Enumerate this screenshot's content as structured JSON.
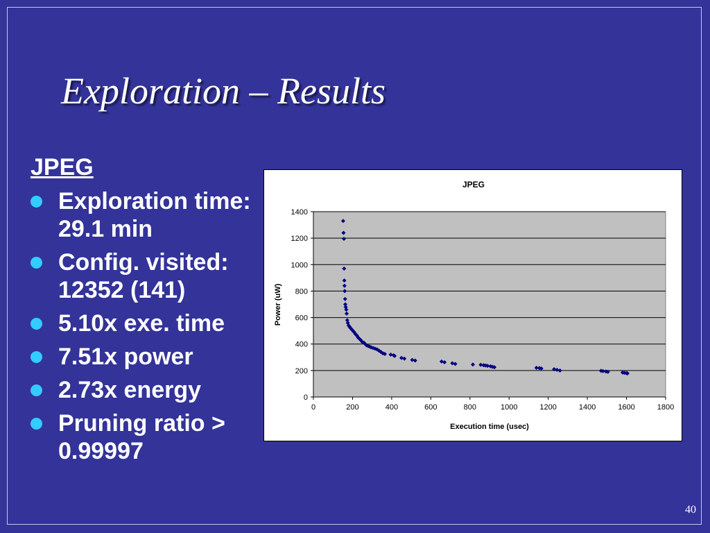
{
  "slide": {
    "title": "Exploration – Results",
    "subheading": "JPEG",
    "bullets": [
      "Exploration time: 29.1 min",
      "Config. visited: 12352 (141)",
      "5.10x exe. time",
      "7.51x power",
      "2.73x energy",
      "Pruning ratio > 0.99997"
    ],
    "page_number": "40"
  },
  "colors": {
    "background": "#333399",
    "bullet": "#33ccff",
    "plot_area": "#c0c0c0",
    "marker": "#000080"
  },
  "chart_data": {
    "type": "scatter",
    "title": "JPEG",
    "xlabel": "Execution time (usec)",
    "ylabel": "Power (uW)",
    "xlim": [
      0,
      1800
    ],
    "ylim": [
      0,
      1400
    ],
    "xticks": [
      "0",
      "200",
      "400",
      "600",
      "800",
      "1000",
      "1200",
      "1400",
      "1600",
      "1800"
    ],
    "yticks": [
      "0",
      "200",
      "400",
      "600",
      "800",
      "1000",
      "1200",
      "1400"
    ],
    "grid": "horizontal",
    "legend": "none",
    "x": [
      152,
      154,
      156,
      157,
      158,
      159,
      160,
      162,
      163,
      165,
      168,
      170,
      173,
      176,
      180,
      185,
      190,
      196,
      202,
      208,
      215,
      222,
      228,
      235,
      242,
      250,
      258,
      265,
      272,
      280,
      288,
      295,
      305,
      315,
      325,
      335,
      345,
      355,
      365,
      395,
      410,
      415,
      450,
      465,
      505,
      520,
      655,
      670,
      710,
      725,
      815,
      855,
      870,
      880,
      890,
      905,
      915,
      925,
      1140,
      1155,
      1165,
      1230,
      1245,
      1260,
      1470,
      1480,
      1495,
      1505,
      1580,
      1590,
      1600,
      1605
    ],
    "y": [
      1330,
      1240,
      1195,
      970,
      880,
      840,
      800,
      740,
      700,
      680,
      660,
      630,
      580,
      560,
      540,
      530,
      520,
      510,
      500,
      490,
      475,
      465,
      450,
      440,
      430,
      415,
      410,
      400,
      390,
      385,
      380,
      375,
      370,
      365,
      360,
      350,
      340,
      330,
      325,
      320,
      315,
      310,
      295,
      290,
      280,
      275,
      268,
      262,
      255,
      250,
      245,
      243,
      240,
      238,
      235,
      232,
      228,
      225,
      220,
      218,
      215,
      210,
      205,
      200,
      198,
      195,
      193,
      190,
      185,
      182,
      180,
      178
    ]
  }
}
